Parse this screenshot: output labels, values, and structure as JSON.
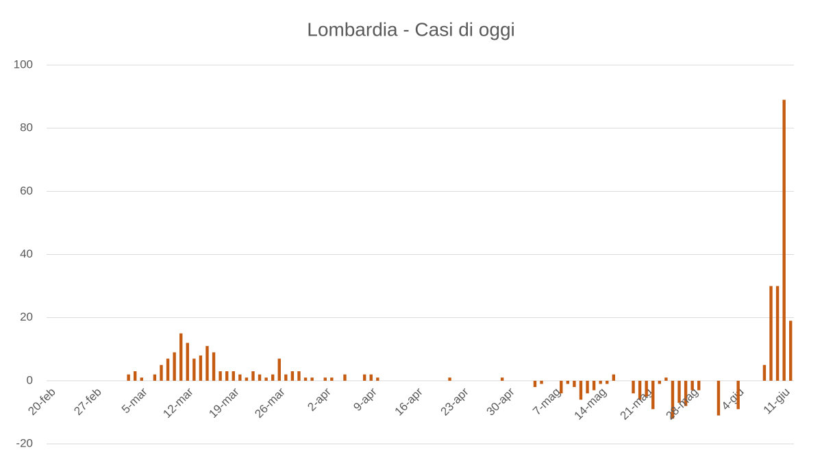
{
  "chart_data": {
    "type": "bar",
    "title": "Lombardia - Casi di oggi",
    "categories": [
      "20-feb",
      null,
      null,
      null,
      null,
      null,
      null,
      "27-feb",
      null,
      null,
      null,
      null,
      null,
      null,
      "5-mar",
      null,
      null,
      null,
      null,
      null,
      null,
      "12-mar",
      null,
      null,
      null,
      null,
      null,
      null,
      "19-mar",
      null,
      null,
      null,
      null,
      null,
      null,
      "26-mar",
      null,
      null,
      null,
      null,
      null,
      null,
      "2-apr",
      null,
      null,
      null,
      null,
      null,
      null,
      "9-apr",
      null,
      null,
      null,
      null,
      null,
      null,
      "16-apr",
      null,
      null,
      null,
      null,
      null,
      null,
      "23-apr",
      null,
      null,
      null,
      null,
      null,
      null,
      "30-apr",
      null,
      null,
      null,
      null,
      null,
      null,
      "7-mag",
      null,
      null,
      null,
      null,
      null,
      null,
      "14-mag",
      null,
      null,
      null,
      null,
      null,
      null,
      "21-mag",
      null,
      null,
      null,
      null,
      null,
      null,
      "28-mag",
      null,
      null,
      null,
      null,
      null,
      null,
      "4-giu",
      null,
      null,
      null,
      null,
      null,
      null,
      "11-giu",
      null
    ],
    "values": [
      0,
      0,
      0,
      0,
      0,
      0,
      0,
      0,
      0,
      0,
      0,
      0,
      2,
      3,
      1,
      0,
      2,
      5,
      7,
      9,
      15,
      12,
      7,
      8,
      11,
      9,
      3,
      3,
      3,
      2,
      1,
      3,
      2,
      1,
      2,
      7,
      2,
      3,
      3,
      1,
      1,
      0,
      1,
      1,
      0,
      2,
      0,
      0,
      2,
      2,
      1,
      0,
      0,
      0,
      0,
      0,
      0,
      0,
      0,
      0,
      0,
      1,
      0,
      0,
      0,
      0,
      0,
      0,
      0,
      1,
      0,
      0,
      0,
      0,
      -2,
      -1,
      0,
      0,
      -4,
      -1,
      -2,
      -6,
      -4,
      -3,
      -1,
      -1,
      2,
      0,
      0,
      -4,
      -6,
      -5,
      -9,
      -1,
      1,
      -12,
      -7,
      -8,
      -3,
      -3,
      0,
      0,
      -11,
      0,
      0,
      -9,
      0,
      0,
      0,
      5,
      30,
      30,
      89,
      19
    ],
    "color": "#c55a11",
    "ylim": [
      -20,
      100
    ],
    "yticks": [
      -20,
      0,
      20,
      40,
      60,
      80,
      100
    ],
    "grid": true
  }
}
